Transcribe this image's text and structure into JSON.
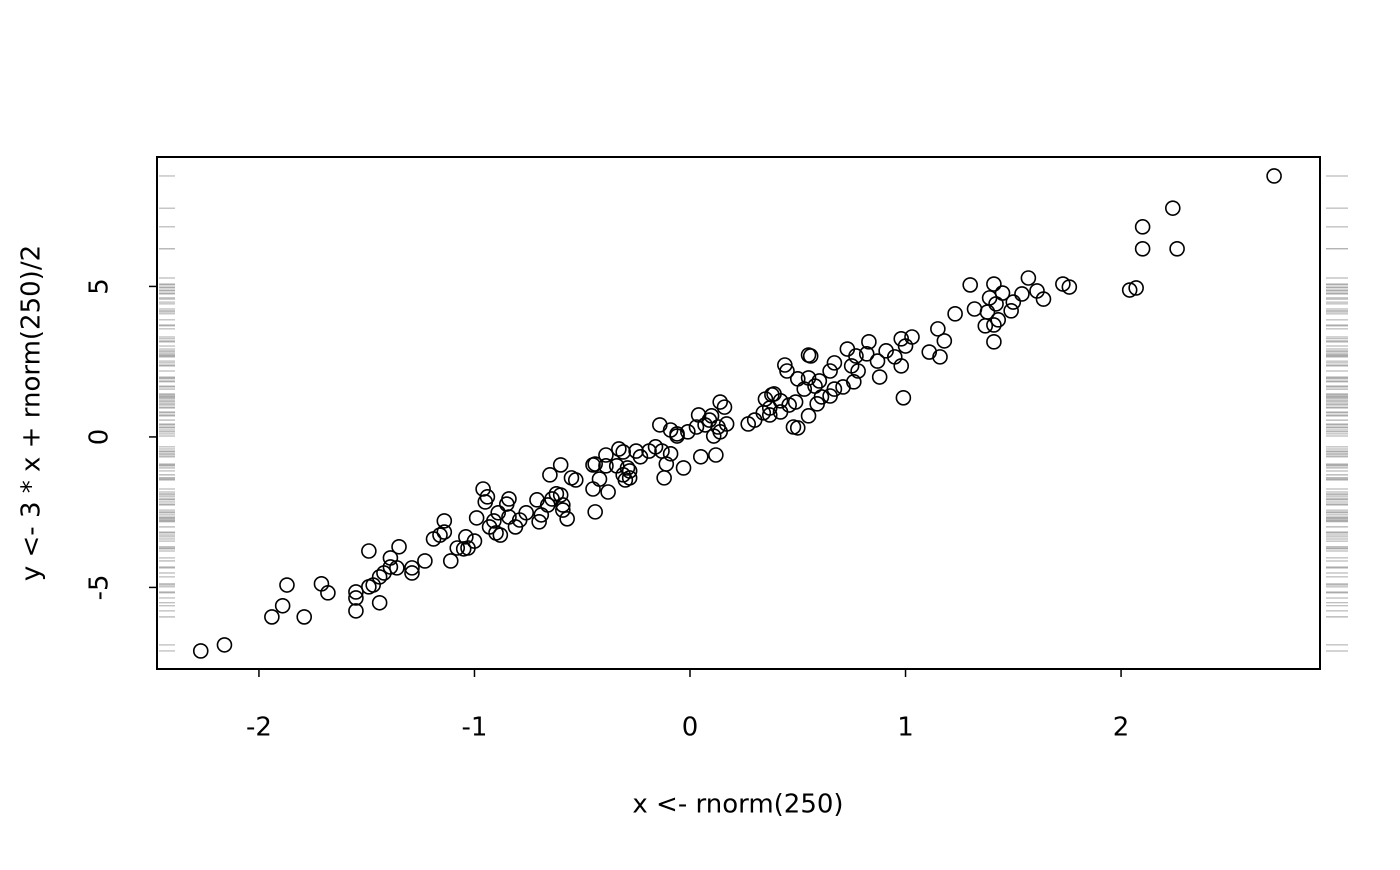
{
  "chart_data": {
    "type": "scatter",
    "x_label": "x <- rnorm(250)",
    "y_label": "y <- 3 * x + rnorm(250)/2",
    "x": [
      2.71,
      2.24,
      2.1,
      2.1,
      2.26,
      2.04,
      2.07,
      1.76,
      1.73,
      1.57,
      1.61,
      1.64,
      1.54,
      1.5,
      1.49,
      1.3,
      1.41,
      1.45,
      1.39,
      1.42,
      1.38,
      1.32,
      1.43,
      1.41,
      1.37,
      1.41,
      1.23,
      1.15,
      1.18,
      1.16,
      1.11,
      1.03,
      0.98,
      1.0,
      0.98,
      0.99,
      0.91,
      0.95,
      0.87,
      0.88,
      0.82,
      0.83,
      0.73,
      0.77,
      0.75,
      0.78,
      0.76,
      0.67,
      0.65,
      0.58,
      0.55,
      0.53,
      0.56,
      0.55,
      0.44,
      0.45,
      0.5,
      0.6,
      0.61,
      0.59,
      0.55,
      0.71,
      0.67,
      0.65,
      0.39,
      0.38,
      0.35,
      0.42,
      0.46,
      0.49,
      0.37,
      0.42,
      0.34,
      0.37,
      0.48,
      0.5,
      0.3,
      0.27,
      0.17,
      0.13,
      0.07,
      0.03,
      0.16,
      0.14,
      0.1,
      0.09,
      0.14,
      0.11,
      0.12,
      0.05,
      0.04,
      -0.01,
      -0.06,
      -0.09,
      -0.14,
      -0.06,
      -0.03,
      -0.09,
      -0.13,
      -0.11,
      -0.12,
      -0.16,
      -0.19,
      -0.23,
      -0.25,
      -0.31,
      -0.33,
      -0.29,
      -0.31,
      -0.3,
      -0.28,
      -0.28,
      -0.34,
      -0.39,
      -0.39,
      -0.42,
      -0.38,
      -0.45,
      -0.44,
      -0.45,
      -0.44,
      -0.6,
      -0.65,
      -0.55,
      -0.53,
      -0.6,
      -0.62,
      -0.64,
      -0.59,
      -0.59,
      -0.57,
      -0.66,
      -0.71,
      -0.69,
      -0.7,
      -0.76,
      -0.79,
      -0.81,
      -0.84,
      -0.85,
      -0.89,
      -0.96,
      -0.94,
      -0.95,
      -0.91,
      -0.93,
      -0.88,
      -0.9,
      -0.84,
      -0.99,
      -1.0,
      -1.04,
      -1.03,
      -1.05,
      -1.08,
      -1.11,
      -1.14,
      -1.14,
      -1.16,
      -1.19,
      -1.23,
      -1.29,
      -1.29,
      -1.35,
      -1.36,
      -1.39,
      -1.39,
      -1.42,
      -1.44,
      -1.44,
      -1.47,
      -1.49,
      -1.49,
      -1.55,
      -1.55,
      -1.55,
      -1.68,
      -1.71,
      -1.79,
      -1.87,
      -1.89,
      -1.94,
      -2.16,
      -2.27
    ],
    "y": [
      8.67,
      7.6,
      6.98,
      6.25,
      6.25,
      4.88,
      4.95,
      4.98,
      5.08,
      5.28,
      4.85,
      4.58,
      4.75,
      4.48,
      4.19,
      5.05,
      5.08,
      4.78,
      4.62,
      4.42,
      4.15,
      4.25,
      3.89,
      3.72,
      3.69,
      3.16,
      4.09,
      3.59,
      3.19,
      2.66,
      2.82,
      3.32,
      3.26,
      3.02,
      2.36,
      1.3,
      2.86,
      2.66,
      2.52,
      1.99,
      2.76,
      3.16,
      2.92,
      2.69,
      2.36,
      2.19,
      1.83,
      2.46,
      2.19,
      1.69,
      1.96,
      1.59,
      2.69,
      2.72,
      2.39,
      2.19,
      1.93,
      1.86,
      1.33,
      1.1,
      0.7,
      1.66,
      1.59,
      1.36,
      1.43,
      1.4,
      1.26,
      1.2,
      1.06,
      1.16,
      0.96,
      0.83,
      0.8,
      0.73,
      0.33,
      0.3,
      0.56,
      0.43,
      0.43,
      0.33,
      0.4,
      0.33,
      0.99,
      1.16,
      0.7,
      0.56,
      0.17,
      0.03,
      -0.6,
      -0.66,
      0.73,
      0.17,
      0.1,
      0.23,
      0.4,
      0.03,
      -1.03,
      -0.56,
      -0.47,
      -0.9,
      -1.36,
      -0.33,
      -0.47,
      -0.66,
      -0.47,
      -0.5,
      -0.4,
      -1.03,
      -1.26,
      -1.43,
      -1.36,
      -1.13,
      -0.96,
      -0.6,
      -0.96,
      -1.4,
      -1.83,
      -0.93,
      -0.9,
      -1.73,
      -2.49,
      -0.93,
      -1.26,
      -1.36,
      -1.43,
      -1.93,
      -1.89,
      -2.06,
      -2.26,
      -2.43,
      -2.72,
      -2.26,
      -2.09,
      -2.59,
      -2.82,
      -2.52,
      -2.76,
      -2.99,
      -2.06,
      -2.23,
      -2.52,
      -1.73,
      -1.99,
      -2.16,
      -2.79,
      -2.99,
      -3.26,
      -3.19,
      -2.66,
      -2.69,
      -3.46,
      -3.32,
      -3.69,
      -3.72,
      -3.69,
      -4.12,
      -2.79,
      -3.16,
      -3.26,
      -3.39,
      -4.12,
      -4.35,
      -4.52,
      -3.65,
      -4.35,
      -4.02,
      -4.32,
      -4.52,
      -4.65,
      -5.51,
      -4.92,
      -4.98,
      -3.79,
      -5.15,
      -5.35,
      -5.78,
      -5.18,
      -4.88,
      -5.98,
      -4.92,
      -5.61,
      -5.98,
      -6.91,
      -7.11
    ],
    "xlim": [
      -2.473,
      2.923
    ],
    "ylim": [
      -7.71,
      9.3
    ],
    "xticks": [
      -2,
      -1,
      0,
      1,
      2
    ],
    "yticks": [
      -5,
      0,
      5
    ],
    "rug": true,
    "color": "#000000",
    "rug_color": "#aaaaaa"
  }
}
